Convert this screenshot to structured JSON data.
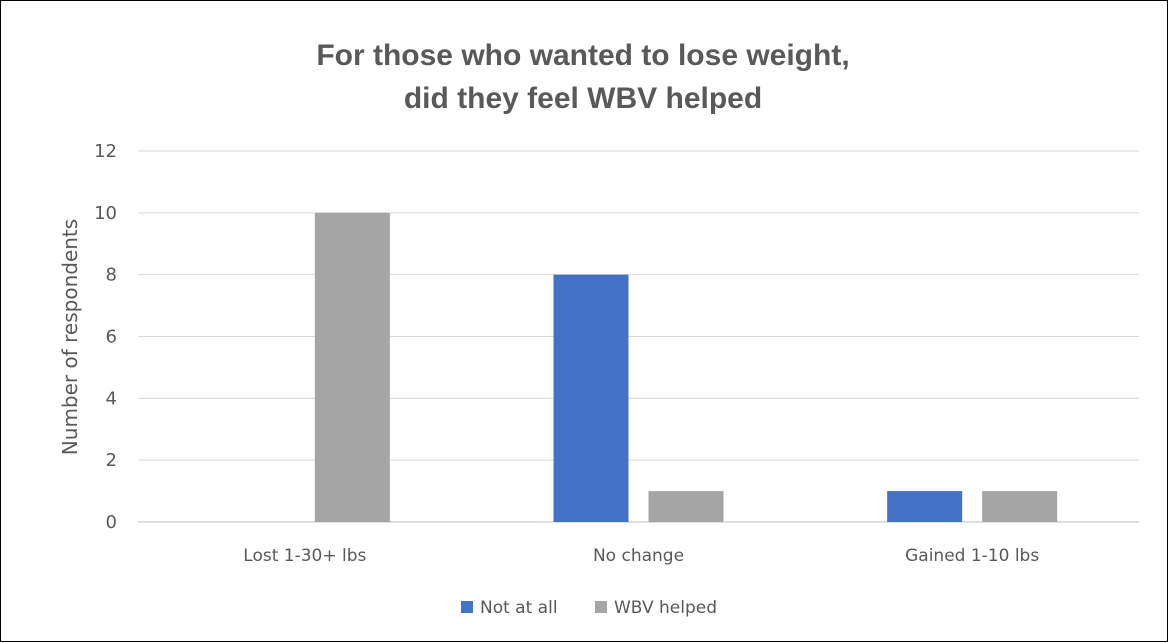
{
  "chart_data": {
    "type": "bar",
    "title_lines": [
      "For those who wanted to lose weight,",
      "did they feel WBV helped"
    ],
    "xlabel": "",
    "ylabel": "Number of respondents",
    "ylim": [
      0,
      12
    ],
    "yticks": [
      0,
      2,
      4,
      6,
      8,
      10,
      12
    ],
    "categories": [
      "Lost 1-30+ lbs",
      "No change",
      "Gained 1-10 lbs"
    ],
    "series": [
      {
        "name": "Not at all",
        "color": "#4472C4",
        "values": [
          0,
          8,
          1
        ]
      },
      {
        "name": "WBV helped",
        "color": "#A5A5A5",
        "values": [
          10,
          1,
          1
        ]
      }
    ],
    "grid": true,
    "legend_position": "bottom"
  }
}
